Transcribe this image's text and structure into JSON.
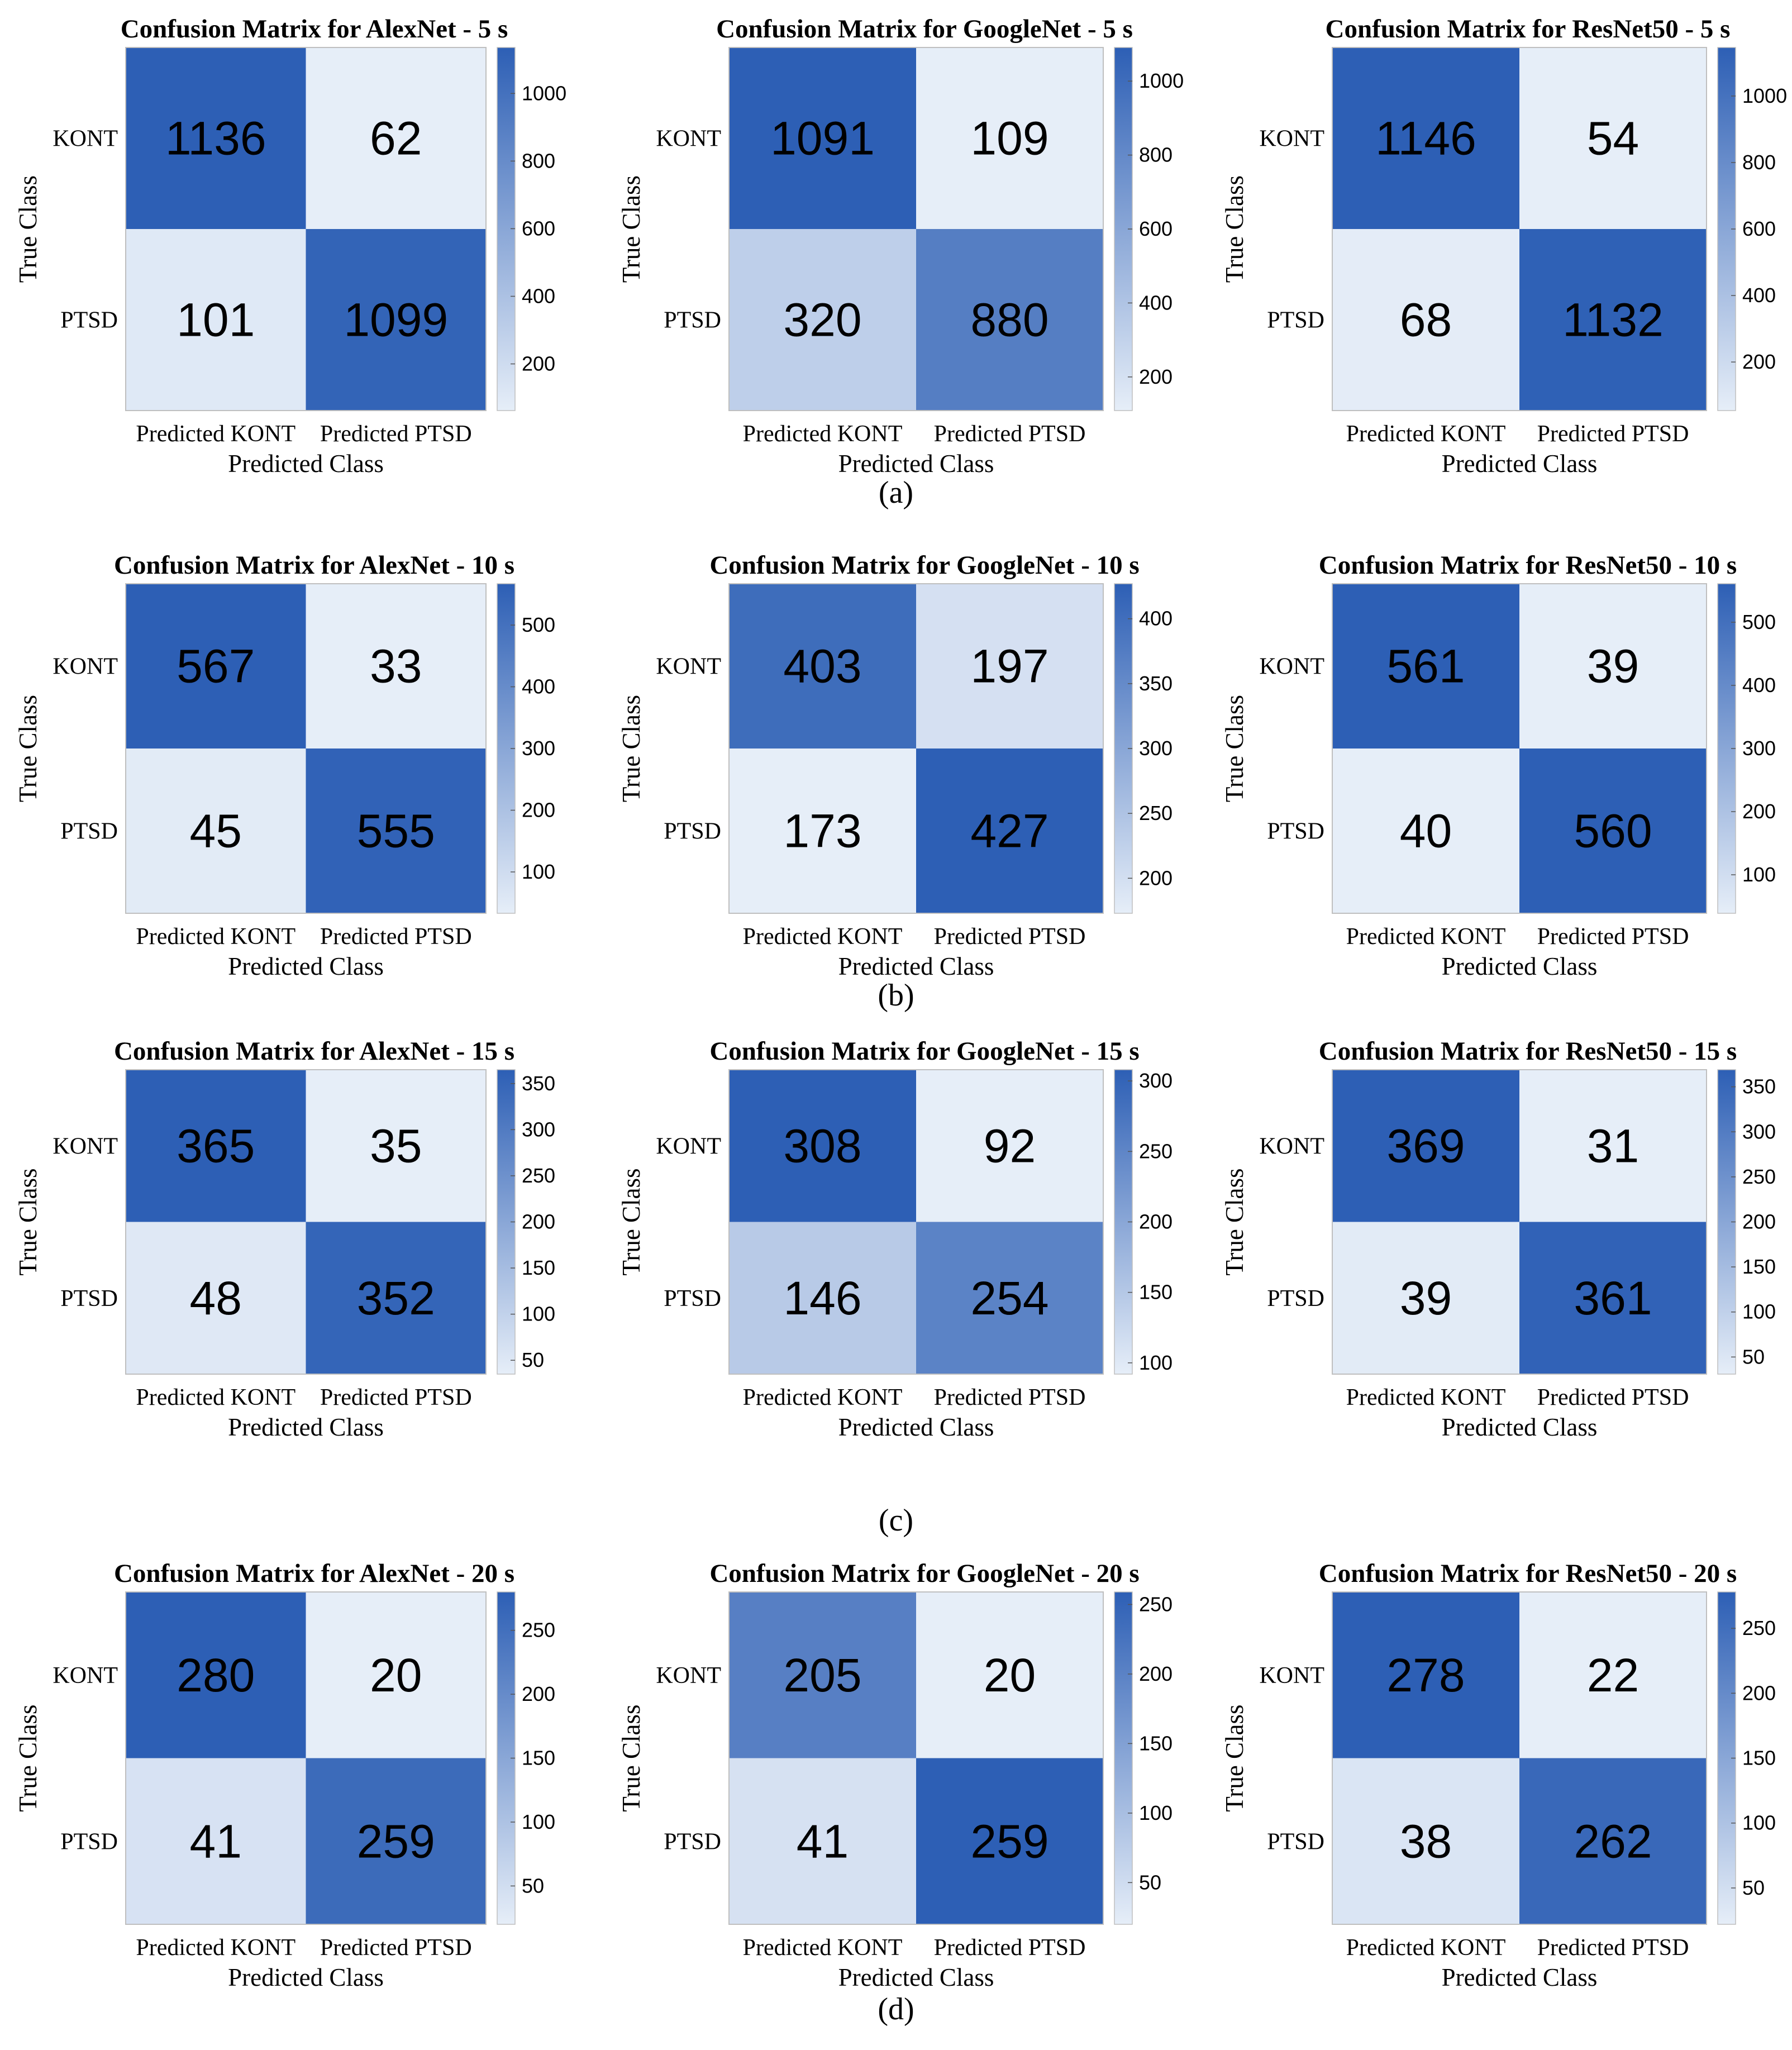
{
  "chart_data": [
    {
      "type": "heatmap",
      "title": "Confusion Matrix for AlexNet - 5 s",
      "xlabel": "Predicted Class",
      "ylabel": "True Class",
      "x_categories": [
        "Predicted KONT",
        "Predicted PTSD"
      ],
      "y_categories": [
        "KONT",
        "PTSD"
      ],
      "values": [
        [
          1136,
          62
        ],
        [
          101,
          1099
        ]
      ],
      "colorbar_ticks": [
        200,
        400,
        600,
        800,
        1000
      ],
      "colorbar_range": [
        62,
        1136
      ]
    },
    {
      "type": "heatmap",
      "title": "Confusion Matrix for GoogleNet - 5 s",
      "xlabel": "Predicted Class",
      "ylabel": "True Class",
      "x_categories": [
        "Predicted KONT",
        "Predicted PTSD"
      ],
      "y_categories": [
        "KONT",
        "PTSD"
      ],
      "values": [
        [
          1091,
          109
        ],
        [
          320,
          880
        ]
      ],
      "colorbar_ticks": [
        200,
        400,
        600,
        800,
        1000
      ],
      "colorbar_range": [
        109,
        1091
      ]
    },
    {
      "type": "heatmap",
      "title": "Confusion Matrix for ResNet50 - 5 s",
      "xlabel": "Predicted Class",
      "ylabel": "True Class",
      "x_categories": [
        "Predicted KONT",
        "Predicted PTSD"
      ],
      "y_categories": [
        "KONT",
        "PTSD"
      ],
      "values": [
        [
          1146,
          54
        ],
        [
          68,
          1132
        ]
      ],
      "colorbar_ticks": [
        200,
        400,
        600,
        800,
        1000
      ],
      "colorbar_range": [
        54,
        1146
      ]
    },
    {
      "type": "heatmap",
      "title": "Confusion Matrix for AlexNet - 10 s",
      "xlabel": "Predicted Class",
      "ylabel": "True Class",
      "x_categories": [
        "Predicted KONT",
        "Predicted PTSD"
      ],
      "y_categories": [
        "KONT",
        "PTSD"
      ],
      "values": [
        [
          567,
          33
        ],
        [
          45,
          555
        ]
      ],
      "colorbar_ticks": [
        100,
        200,
        300,
        400,
        500
      ],
      "colorbar_range": [
        33,
        567
      ]
    },
    {
      "type": "heatmap",
      "title": "Confusion Matrix for GoogleNet - 10 s",
      "xlabel": "Predicted Class",
      "ylabel": "True Class",
      "x_categories": [
        "Predicted KONT",
        "Predicted PTSD"
      ],
      "y_categories": [
        "KONT",
        "PTSD"
      ],
      "values": [
        [
          403,
          197
        ],
        [
          173,
          427
        ]
      ],
      "colorbar_ticks": [
        200,
        250,
        300,
        350,
        400
      ],
      "colorbar_range": [
        173,
        427
      ]
    },
    {
      "type": "heatmap",
      "title": "Confusion Matrix for ResNet50 - 10 s",
      "xlabel": "Predicted Class",
      "ylabel": "True Class",
      "x_categories": [
        "Predicted KONT",
        "Predicted PTSD"
      ],
      "y_categories": [
        "KONT",
        "PTSD"
      ],
      "values": [
        [
          561,
          39
        ],
        [
          40,
          560
        ]
      ],
      "colorbar_ticks": [
        100,
        200,
        300,
        400,
        500
      ],
      "colorbar_range": [
        39,
        561
      ]
    },
    {
      "type": "heatmap",
      "title": "Confusion Matrix for AlexNet - 15 s",
      "xlabel": "Predicted Class",
      "ylabel": "True Class",
      "x_categories": [
        "Predicted KONT",
        "Predicted PTSD"
      ],
      "y_categories": [
        "KONT",
        "PTSD"
      ],
      "values": [
        [
          365,
          35
        ],
        [
          48,
          352
        ]
      ],
      "colorbar_ticks": [
        50,
        100,
        150,
        200,
        250,
        300,
        350
      ],
      "colorbar_range": [
        35,
        365
      ]
    },
    {
      "type": "heatmap",
      "title": "Confusion Matrix for GoogleNet - 15 s",
      "xlabel": "Predicted Class",
      "ylabel": "True Class",
      "x_categories": [
        "Predicted KONT",
        "Predicted PTSD"
      ],
      "y_categories": [
        "KONT",
        "PTSD"
      ],
      "values": [
        [
          308,
          92
        ],
        [
          146,
          254
        ]
      ],
      "colorbar_ticks": [
        100,
        150,
        200,
        250,
        300
      ],
      "colorbar_range": [
        92,
        308
      ]
    },
    {
      "type": "heatmap",
      "title": "Confusion Matrix for ResNet50 - 15 s",
      "xlabel": "Predicted Class",
      "ylabel": "True Class",
      "x_categories": [
        "Predicted KONT",
        "Predicted PTSD"
      ],
      "y_categories": [
        "KONT",
        "PTSD"
      ],
      "values": [
        [
          369,
          31
        ],
        [
          39,
          361
        ]
      ],
      "colorbar_ticks": [
        50,
        100,
        150,
        200,
        250,
        300,
        350
      ],
      "colorbar_range": [
        31,
        369
      ]
    },
    {
      "type": "heatmap",
      "title": "Confusion Matrix for AlexNet - 20 s",
      "xlabel": "Predicted Class",
      "ylabel": "True Class",
      "x_categories": [
        "Predicted KONT",
        "Predicted PTSD"
      ],
      "y_categories": [
        "KONT",
        "PTSD"
      ],
      "values": [
        [
          280,
          20
        ],
        [
          41,
          259
        ]
      ],
      "colorbar_ticks": [
        50,
        100,
        150,
        200,
        250
      ],
      "colorbar_range": [
        20,
        280
      ]
    },
    {
      "type": "heatmap",
      "title": "Confusion Matrix for GoogleNet - 20 s",
      "xlabel": "Predicted Class",
      "ylabel": "True Class",
      "x_categories": [
        "Predicted KONT",
        "Predicted PTSD"
      ],
      "y_categories": [
        "KONT",
        "PTSD"
      ],
      "values": [
        [
          205,
          20
        ],
        [
          41,
          259
        ]
      ],
      "colorbar_ticks": [
        50,
        100,
        150,
        200,
        250
      ],
      "colorbar_range": [
        20,
        259
      ]
    },
    {
      "type": "heatmap",
      "title": "Confusion Matrix for ResNet50 - 20 s",
      "xlabel": "Predicted Class",
      "ylabel": "True Class",
      "x_categories": [
        "Predicted KONT",
        "Predicted PTSD"
      ],
      "y_categories": [
        "KONT",
        "PTSD"
      ],
      "values": [
        [
          278,
          22
        ],
        [
          38,
          262
        ]
      ],
      "colorbar_ticks": [
        50,
        100,
        150,
        200,
        250
      ],
      "colorbar_range": [
        22,
        278
      ]
    }
  ],
  "row_labels": [
    "(a)",
    "(b)",
    "(c)",
    "(d)"
  ],
  "colors": {
    "low": "#e6eef8",
    "high": "#2d5fb5",
    "text": "#000000",
    "border": "#bfbfbf"
  }
}
